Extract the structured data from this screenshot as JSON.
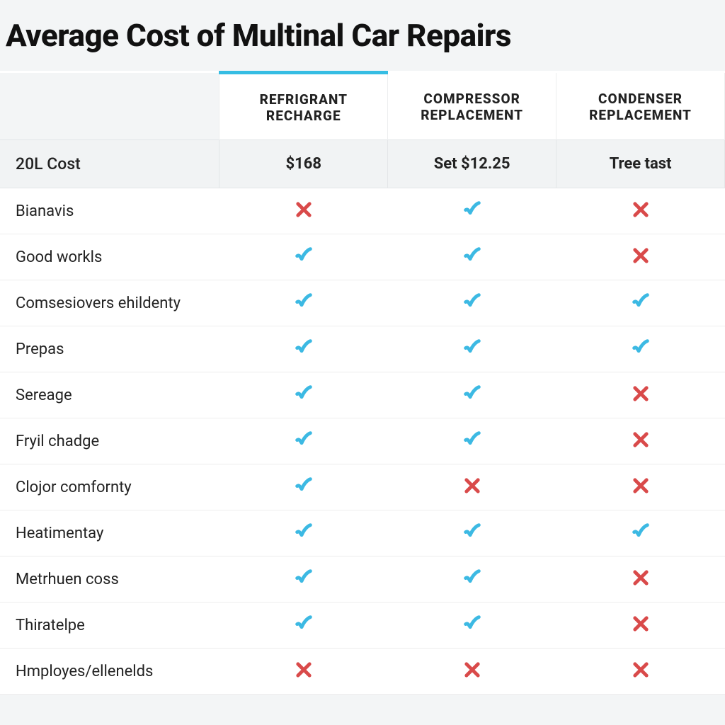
{
  "title": "Average Cost of Multinal Car Repairs",
  "colors": {
    "accent": "#36bde3",
    "check": "#3cb9e3",
    "cross": "#d94a4a",
    "page_bg": "#f3f5f6",
    "grid": "#e3e6e8",
    "row_border": "#ededed"
  },
  "comparison_table": {
    "type": "table",
    "row_header_column": "",
    "cost_row_label": "20L Cost",
    "columns": [
      {
        "label_line1": "REFRIGRANT",
        "label_line2": "RECHARGE",
        "cost": "$168",
        "highlighted": true
      },
      {
        "label_line1": "COMPRESSOR",
        "label_line2": "REPLACEMENT",
        "cost": "Set $12.25",
        "highlighted": false
      },
      {
        "label_line1": "CONDENSER",
        "label_line2": "REPLACEMENT",
        "cost": "Tree tast",
        "highlighted": false
      }
    ],
    "rows": [
      {
        "label": "Bianavis",
        "cells": [
          "cross",
          "check",
          "cross"
        ]
      },
      {
        "label": "Good workls",
        "cells": [
          "check",
          "check",
          "cross"
        ]
      },
      {
        "label": "Comsesiovers ehildenty",
        "cells": [
          "check",
          "check",
          "check"
        ]
      },
      {
        "label": "Prepas",
        "cells": [
          "check",
          "check",
          "check"
        ]
      },
      {
        "label": "Sereage",
        "cells": [
          "check",
          "check",
          "cross"
        ]
      },
      {
        "label": "Fryil chadge",
        "cells": [
          "check",
          "check",
          "cross"
        ]
      },
      {
        "label": "Clojor comfornty",
        "cells": [
          "check",
          "cross",
          "cross"
        ]
      },
      {
        "label": "Heatimentay",
        "cells": [
          "check",
          "check",
          "check"
        ]
      },
      {
        "label": "Metrhuen coss",
        "cells": [
          "check",
          "check",
          "cross"
        ]
      },
      {
        "label": "Thiratelpe",
        "cells": [
          "check",
          "check",
          "cross"
        ]
      },
      {
        "label": "Hmployes/ellenelds",
        "cells": [
          "cross",
          "cross",
          "cross"
        ]
      }
    ]
  }
}
